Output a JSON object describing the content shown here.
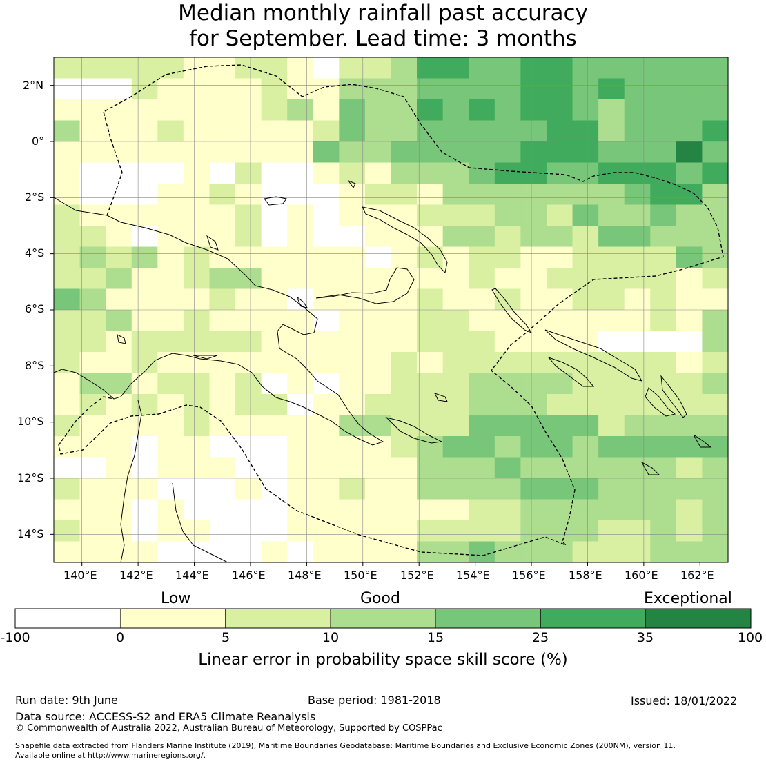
{
  "title_line1": "Median monthly rainfall past accuracy",
  "title_line2": "for September. Lead time: 3 months",
  "map": {
    "lon_labels": [
      "140°E",
      "142°E",
      "144°E",
      "146°E",
      "148°E",
      "150°E",
      "152°E",
      "154°E",
      "156°E",
      "158°E",
      "160°E",
      "162°E"
    ],
    "lat_labels": [
      "2°N",
      "0°",
      "2°S",
      "4°S",
      "6°S",
      "8°S",
      "10°S",
      "12°S",
      "14°S"
    ],
    "extent": {
      "lon": [
        139,
        163
      ],
      "lat": [
        -15,
        3
      ]
    },
    "grid_resolution_deg": 0.83,
    "skill_map": [
      "22222112210223554455444444",
      "00021111211333444455454444",
      "11111111231433545455434444",
      "31112111112433444445534445",
      "11111111114334444455544464",
      "10000102001213334554455545",
      "10001121000122133333334553",
      "21111112010111222332433433",
      "22101112010011133233244333",
      "23231211111101212211222243",
      "22311233111111112112222212",
      "43111121101111211211221211",
      "22311211110111221111111213",
      "22122222111111222111100003",
      "21121111111112122222222212",
      "13312212010112223333222223",
      "12121212201122223332222222",
      "21111211111332224444423333",
      "11101100011112344344344444",
      "00101110011111333433333323",
      "21110001011211333344433333",
      "11101000011111112233333323",
      "21101100011111222233322323",
      "11110000101111334333222333"
    ]
  },
  "colorbar": {
    "categories": [
      "Low",
      "Good",
      "Exceptional"
    ],
    "ticks": [
      "-100",
      "0",
      "5",
      "10",
      "15",
      "25",
      "35",
      "100"
    ],
    "colors": [
      "#ffffff",
      "#ffffcc",
      "#d9f0a3",
      "#addd8e",
      "#78c679",
      "#41ab5d",
      "#238443"
    ],
    "label": "Linear error in probability space skill score (%)"
  },
  "footer": {
    "run_date": "Run date: 9th June",
    "base_period": "Base period: 1981-2018",
    "issued": "Issued: 18/01/2022",
    "data_source": "Data source: ACCESS-S2 and ERA5 Climate Reanalysis",
    "copyright": "© Commonwealth of Australia 2022, Australian Bureau of Meteorology, Supported by COSPPac",
    "shapefile_line1": "Shapefile data extracted from Flanders Marine Institute (2019), Maritime Boundaries Geodatabase: Maritime Boundaries and Exclusive Economic Zones (200NM), version 11.",
    "shapefile_line2": "Available online at http://www.marineregions.org/."
  }
}
